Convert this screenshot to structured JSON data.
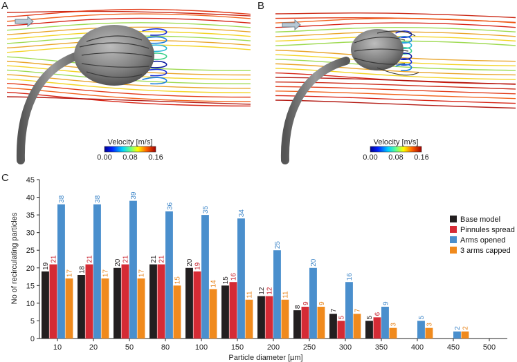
{
  "panels": {
    "a": {
      "letter": "A"
    },
    "b": {
      "letter": "B"
    },
    "c": {
      "letter": "C"
    }
  },
  "colorbar": {
    "title": "Velocity [m/s]",
    "ticks": [
      "0.00",
      "0.08",
      "0.16"
    ]
  },
  "colors": {
    "base": "#231f20",
    "pinnules": "#d52b35",
    "arms_opened": "#4a8fcd",
    "capped": "#f08a1d",
    "label_base": "#231f20",
    "label_pinnules": "#c9242f",
    "label_arms": "#3e86c8",
    "label_capped": "#e8841a"
  },
  "chart_data": {
    "type": "bar",
    "xlabel": "Particle diameter [µm]",
    "ylabel": "No of recirculating particles",
    "ylim": [
      0,
      45
    ],
    "yticks": [
      0,
      5,
      10,
      15,
      20,
      25,
      30,
      35,
      40,
      45
    ],
    "legend_position": "right",
    "categories": [
      "10",
      "20",
      "50",
      "80",
      "100",
      "150",
      "200",
      "250",
      "300",
      "350",
      "400",
      "450",
      "500"
    ],
    "series": [
      {
        "name": "Base model",
        "values": [
          19,
          18,
          20,
          21,
          20,
          15,
          12,
          8,
          7,
          5,
          0,
          0,
          0
        ]
      },
      {
        "name": "Pinnules spread",
        "values": [
          21,
          21,
          21,
          21,
          19,
          16,
          12,
          9,
          5,
          6,
          0,
          0,
          0
        ]
      },
      {
        "name": "Arms opened",
        "values": [
          38,
          38,
          39,
          36,
          35,
          34,
          25,
          20,
          16,
          9,
          5,
          2,
          0
        ]
      },
      {
        "name": "3 arms capped",
        "values": [
          17,
          17,
          17,
          15,
          14,
          11,
          11,
          9,
          7,
          3,
          3,
          2,
          0
        ]
      }
    ]
  }
}
